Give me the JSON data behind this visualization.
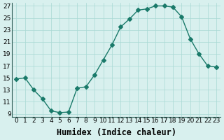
{
  "x": [
    0,
    1,
    2,
    3,
    4,
    5,
    6,
    7,
    8,
    9,
    10,
    11,
    12,
    13,
    14,
    15,
    16,
    17,
    18,
    19,
    20,
    21,
    22,
    23
  ],
  "y": [
    14.8,
    15.0,
    13.0,
    11.5,
    9.5,
    9.2,
    9.3,
    13.3,
    13.5,
    15.5,
    18.0,
    20.5,
    23.5,
    24.8,
    26.3,
    26.5,
    27.0,
    27.0,
    26.8,
    25.2,
    21.5,
    19.0,
    17.0,
    16.8
  ],
  "line_color": "#1a7a6a",
  "marker": "D",
  "markersize": 3,
  "bg_color": "#d8f0ee",
  "grid_color": "#a8d8d4",
  "xlabel": "Humidex (Indice chaleur)",
  "ylabel": "",
  "xlim": [
    -0.5,
    23.5
  ],
  "ylim": [
    8.5,
    27.5
  ],
  "yticks": [
    9,
    11,
    13,
    15,
    17,
    19,
    21,
    23,
    25,
    27
  ],
  "xticks": [
    0,
    1,
    2,
    3,
    4,
    5,
    6,
    7,
    8,
    9,
    10,
    11,
    12,
    13,
    14,
    15,
    16,
    17,
    18,
    19,
    20,
    21,
    22,
    23
  ],
  "tick_fontsize": 6.5,
  "xlabel_fontsize": 8.5,
  "axis_color": "#2a5a52"
}
